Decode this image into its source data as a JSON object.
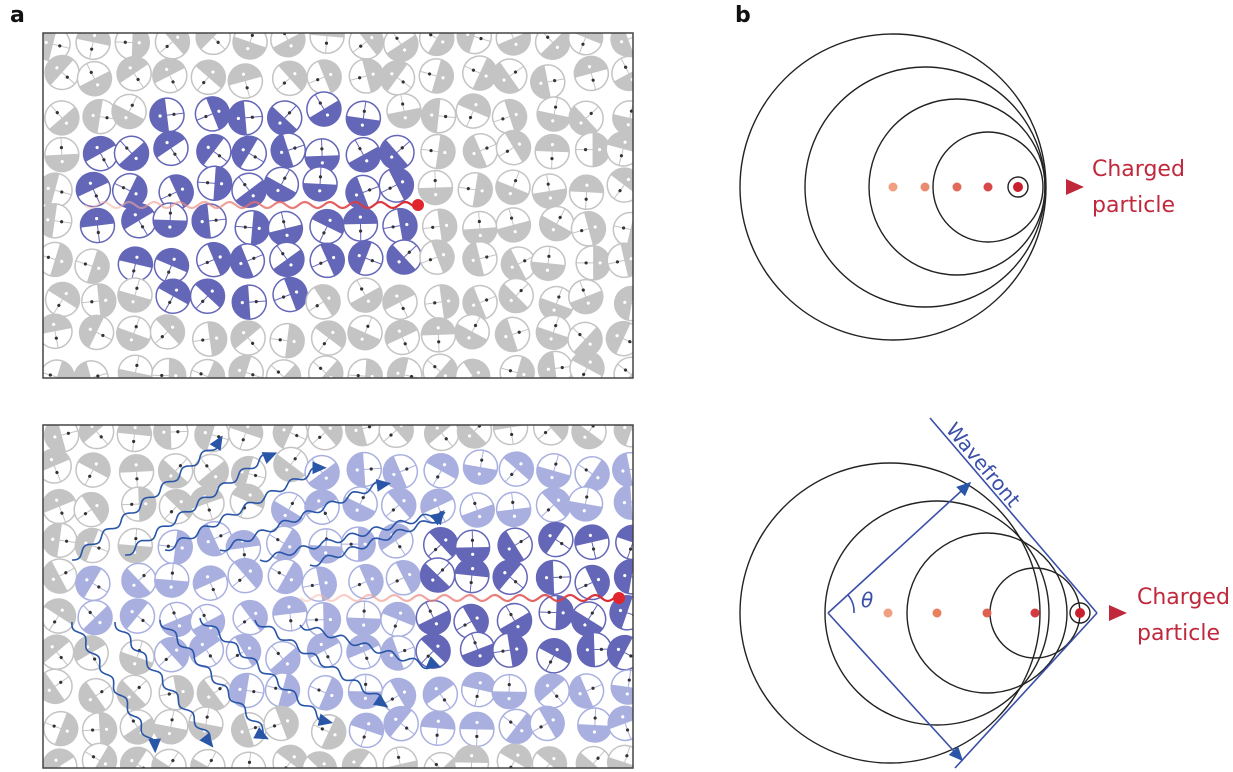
{
  "panel_a": {
    "label": "a"
  },
  "panel_b": {
    "label": "b",
    "top": {
      "particle_label": {
        "line1": "Charged",
        "line2": "particle"
      }
    },
    "bottom": {
      "particle_label": {
        "line1": "Charged",
        "line2": "particle"
      },
      "wavefront_label": "Wavefront",
      "angle_label": "θ"
    }
  }
}
